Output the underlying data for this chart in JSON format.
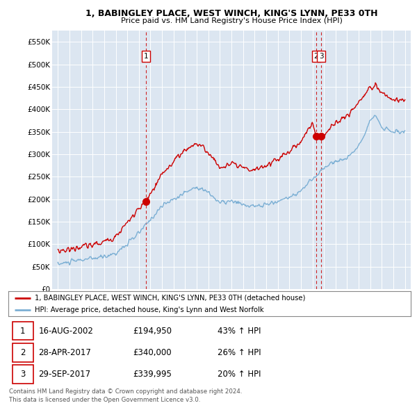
{
  "title": "1, BABINGLEY PLACE, WEST WINCH, KING'S LYNN, PE33 0TH",
  "subtitle": "Price paid vs. HM Land Registry's House Price Index (HPI)",
  "legend_line1": "1, BABINGLEY PLACE, WEST WINCH, KING'S LYNN, PE33 0TH (detached house)",
  "legend_line2": "HPI: Average price, detached house, King's Lynn and West Norfolk",
  "footer1": "Contains HM Land Registry data © Crown copyright and database right 2024.",
  "footer2": "This data is licensed under the Open Government Licence v3.0.",
  "sale_color": "#cc0000",
  "hpi_color": "#7bafd4",
  "vline_color": "#cc0000",
  "plot_bg_color": "#dce6f1",
  "ylim": [
    0,
    575000
  ],
  "yticks": [
    0,
    50000,
    100000,
    150000,
    200000,
    250000,
    300000,
    350000,
    400000,
    450000,
    500000,
    550000
  ],
  "ytick_labels": [
    "£0",
    "£50K",
    "£100K",
    "£150K",
    "£200K",
    "£250K",
    "£300K",
    "£350K",
    "£400K",
    "£450K",
    "£500K",
    "£550K"
  ],
  "sale_dates": [
    2002.63,
    2017.32,
    2017.75
  ],
  "sale_prices": [
    194950,
    340000,
    339995
  ],
  "sale_labels": [
    "1",
    "2",
    "3"
  ],
  "table_rows": [
    [
      "1",
      "16-AUG-2002",
      "£194,950",
      "43% ↑ HPI"
    ],
    [
      "2",
      "28-APR-2017",
      "£340,000",
      "26% ↑ HPI"
    ],
    [
      "3",
      "29-SEP-2017",
      "£339,995",
      "20% ↑ HPI"
    ]
  ],
  "xmin": 1994.5,
  "xmax": 2025.5
}
